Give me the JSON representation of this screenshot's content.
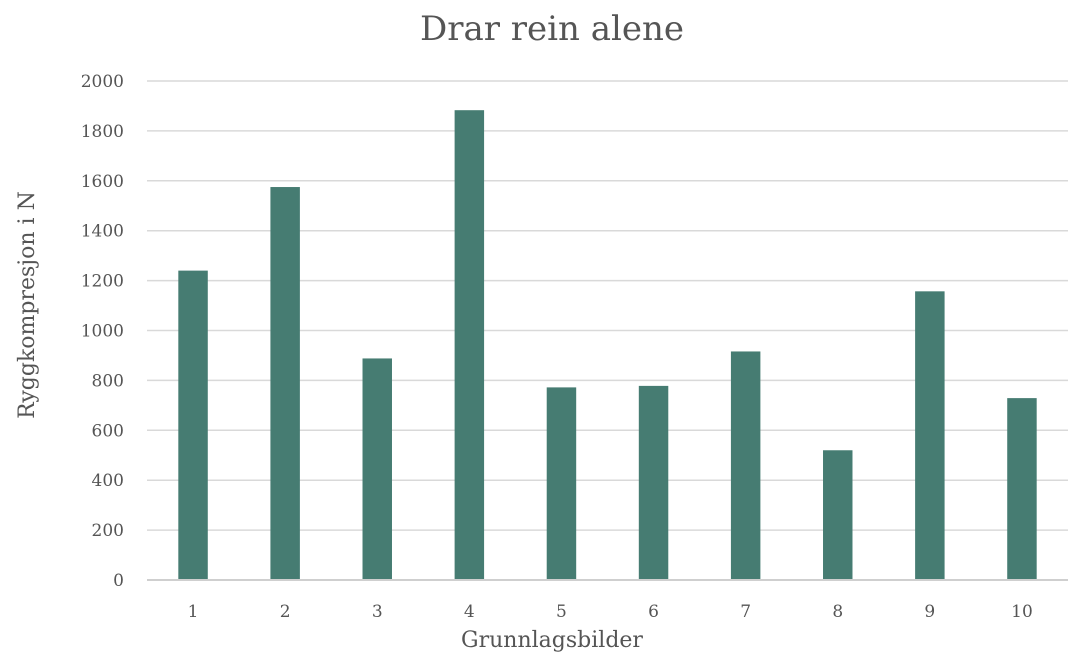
{
  "chart_data": {
    "type": "bar",
    "title": "Drar rein alene",
    "xlabel": "Grunnlagsbilder",
    "ylabel": "Ryggkompresjon i N",
    "categories": [
      "1",
      "2",
      "3",
      "4",
      "5",
      "6",
      "7",
      "8",
      "9",
      "10"
    ],
    "values": [
      1240,
      1575,
      888,
      1883,
      772,
      778,
      916,
      520,
      1157,
      729
    ],
    "ylim": [
      0,
      2000
    ],
    "yticks": [
      0,
      200,
      400,
      600,
      800,
      1000,
      1200,
      1400,
      1600,
      1800,
      2000
    ],
    "grid": true,
    "legend": "none",
    "colors": {
      "bar": "#467c72",
      "grid": "#d9d9d9",
      "text": "#555555"
    }
  }
}
